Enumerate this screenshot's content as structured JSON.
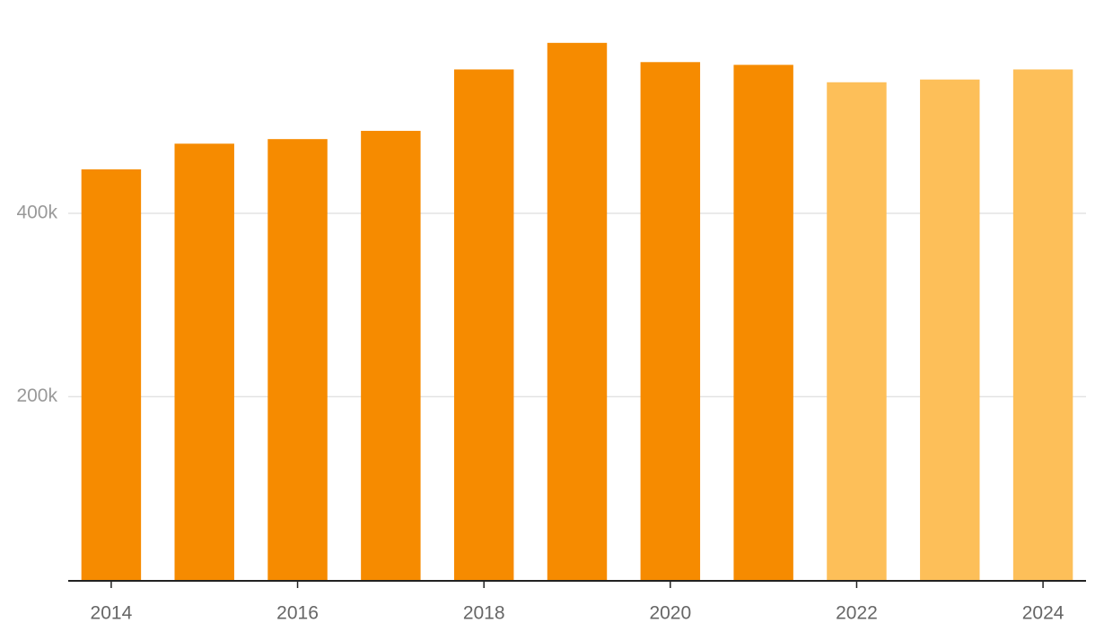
{
  "chart_data": {
    "type": "bar",
    "x": [
      2014,
      2015,
      2016,
      2017,
      2018,
      2019,
      2020,
      2021,
      2022,
      2023,
      2024
    ],
    "values": [
      448000,
      476000,
      481000,
      490000,
      557000,
      586000,
      565000,
      562000,
      543000,
      546000,
      557000
    ],
    "colors": [
      "#f68b00",
      "#f68b00",
      "#f68b00",
      "#f68b00",
      "#f68b00",
      "#f68b00",
      "#f68b00",
      "#f68b00",
      "#fdbf59",
      "#fdbf59",
      "#fdbf59"
    ],
    "xlim": [
      2013.5,
      2024.5
    ],
    "xticks": [
      2014,
      2016,
      2018,
      2020,
      2022,
      2024
    ],
    "ylim": [
      0,
      600000
    ],
    "yticks": [
      {
        "value": 200000,
        "label": "200k"
      },
      {
        "value": 400000,
        "label": "400k"
      }
    ],
    "grid": true
  }
}
